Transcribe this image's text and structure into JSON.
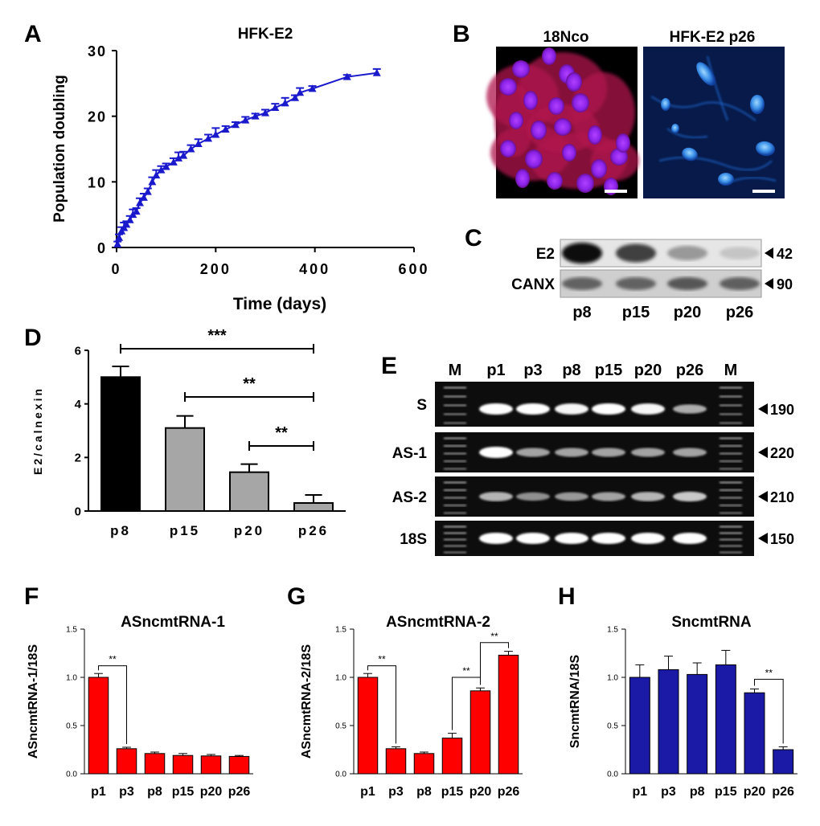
{
  "colors": {
    "blue": "#1a1acc",
    "red": "#ff0000",
    "black": "#000000",
    "gray": "#a6a6a6",
    "navy": "#1a1aa6"
  },
  "chart_data": [
    {
      "panel": "A",
      "type": "line",
      "title": "HFK-E2",
      "xlabel": "Time (days)",
      "ylabel": "Population doubling",
      "xlim": [
        0,
        600
      ],
      "ylim": [
        0,
        30
      ],
      "xticks": [
        "0",
        "200",
        "400",
        "600"
      ],
      "yticks": [
        "0",
        "10",
        "20",
        "30"
      ],
      "x": [
        2,
        5,
        10,
        15,
        20,
        27,
        33,
        40,
        47,
        55,
        63,
        72,
        80,
        90,
        100,
        115,
        125,
        135,
        150,
        165,
        185,
        200,
        220,
        240,
        260,
        280,
        300,
        320,
        340,
        360,
        370,
        395,
        465,
        525
      ],
      "y": [
        0.5,
        1.5,
        2.5,
        3.0,
        3.5,
        4.2,
        5.0,
        5.5,
        6.8,
        7.6,
        8.5,
        10.0,
        11.0,
        11.8,
        12.3,
        13.0,
        13.6,
        14.0,
        15.0,
        15.8,
        16.6,
        17.2,
        18.0,
        18.7,
        19.4,
        20.0,
        20.5,
        21.3,
        22.0,
        22.8,
        23.6,
        24.2,
        26.0,
        26.6
      ],
      "errors": [
        0.4,
        0.5,
        0.6,
        0.8,
        0.5,
        0.6,
        0.8,
        0.5,
        0.7,
        0.6,
        0.5,
        0.7,
        0.8,
        0.6,
        0.5,
        0.6,
        0.9,
        0.6,
        0.6,
        0.7,
        0.6,
        1.0,
        0.5,
        0.4,
        0.5,
        0.4,
        0.5,
        0.6,
        0.8,
        0.4,
        0.7,
        0.4,
        0.3,
        0.6
      ],
      "series_color": "#1a1acc"
    },
    {
      "panel": "D",
      "type": "bar",
      "xlabel": "",
      "ylabel": "E2/calnexin",
      "categories": [
        "p8",
        "p15",
        "p20",
        "p26"
      ],
      "values": [
        5.0,
        3.1,
        1.45,
        0.3
      ],
      "errors": [
        0.4,
        0.45,
        0.3,
        0.3
      ],
      "colors": [
        "#000000",
        "#a6a6a6",
        "#a6a6a6",
        "#a6a6a6"
      ],
      "ylim": [
        0,
        6
      ],
      "yticks": [
        "0",
        "2",
        "4",
        "6"
      ],
      "significance": [
        {
          "from": 0,
          "to": 3,
          "label": "***"
        },
        {
          "from": 1,
          "to": 3,
          "label": "**"
        },
        {
          "from": 2,
          "to": 3,
          "label": "**"
        }
      ]
    },
    {
      "panel": "F",
      "type": "bar",
      "title": "ASncmtRNA-1",
      "xlabel": "",
      "ylabel": "ASncmtRNA-1/18S",
      "categories": [
        "p1",
        "p3",
        "p8",
        "p15",
        "p20",
        "p26"
      ],
      "values": [
        1.0,
        0.26,
        0.21,
        0.19,
        0.185,
        0.18
      ],
      "errors": [
        0.04,
        0.015,
        0.015,
        0.02,
        0.015,
        0.01
      ],
      "color": "#ff0000",
      "ylim": [
        0,
        1.5
      ],
      "yticks": [
        "0.0",
        "0.5",
        "1.0",
        "1.5"
      ],
      "significance": [
        {
          "from": 0,
          "to": 1,
          "label": "**"
        }
      ]
    },
    {
      "panel": "G",
      "type": "bar",
      "title": "ASncmtRNA-2",
      "xlabel": "",
      "ylabel": "ASncmtRNA-2/18S",
      "categories": [
        "p1",
        "p3",
        "p8",
        "p15",
        "p20",
        "p26"
      ],
      "values": [
        1.0,
        0.26,
        0.21,
        0.37,
        0.86,
        1.23
      ],
      "errors": [
        0.04,
        0.02,
        0.015,
        0.05,
        0.03,
        0.04
      ],
      "color": "#ff0000",
      "ylim": [
        0,
        1.5
      ],
      "yticks": [
        "0.0",
        "0.5",
        "1.0",
        "1.5"
      ],
      "significance": [
        {
          "from": 0,
          "to": 1,
          "label": "**"
        },
        {
          "from": 3,
          "to": 4,
          "label": "**"
        },
        {
          "from": 4,
          "to": 5,
          "label": "**"
        }
      ]
    },
    {
      "panel": "H",
      "type": "bar",
      "title": "SncmtRNA",
      "xlabel": "",
      "ylabel": "SncmtRNA/18S",
      "categories": [
        "p1",
        "p3",
        "p8",
        "p15",
        "p20",
        "p26"
      ],
      "values": [
        1.0,
        1.08,
        1.03,
        1.13,
        0.84,
        0.25
      ],
      "errors": [
        0.13,
        0.14,
        0.12,
        0.15,
        0.04,
        0.03
      ],
      "color": "#1a1aa6",
      "ylim": [
        0,
        1.5
      ],
      "yticks": [
        "0.0",
        "0.5",
        "1.0",
        "1.5"
      ],
      "significance": [
        {
          "from": 4,
          "to": 5,
          "label": "**"
        }
      ]
    }
  ],
  "panel_B": {
    "label": "B",
    "images": [
      {
        "title": "18Nco",
        "kind": "red-blue-stain"
      },
      {
        "title": "HFK-E2 p26",
        "kind": "blue-stain"
      }
    ]
  },
  "panel_C": {
    "label": "C",
    "rows": [
      {
        "label": "E2",
        "size": "42",
        "intensities": [
          1.0,
          0.75,
          0.35,
          0.15
        ]
      },
      {
        "label": "CANX",
        "size": "90",
        "intensities": [
          0.6,
          0.6,
          0.65,
          0.62
        ]
      }
    ],
    "lanes": [
      "p8",
      "p15",
      "p20",
      "p26"
    ]
  },
  "panel_E": {
    "label": "E",
    "lanes": [
      "M",
      "p1",
      "p3",
      "p8",
      "p15",
      "p20",
      "p26",
      "M"
    ],
    "rows": [
      {
        "label": "S",
        "size": "190",
        "intensities": [
          1.0,
          1.0,
          0.95,
          1.0,
          0.95,
          0.55
        ]
      },
      {
        "label": "AS-1",
        "size": "220",
        "intensities": [
          1.0,
          0.5,
          0.5,
          0.5,
          0.5,
          0.5
        ]
      },
      {
        "label": "AS-2",
        "size": "210",
        "intensities": [
          0.6,
          0.4,
          0.45,
          0.5,
          0.6,
          0.7
        ]
      },
      {
        "label": "18S",
        "size": "150",
        "intensities": [
          1.0,
          1.0,
          1.0,
          1.0,
          1.0,
          1.0
        ]
      }
    ]
  }
}
